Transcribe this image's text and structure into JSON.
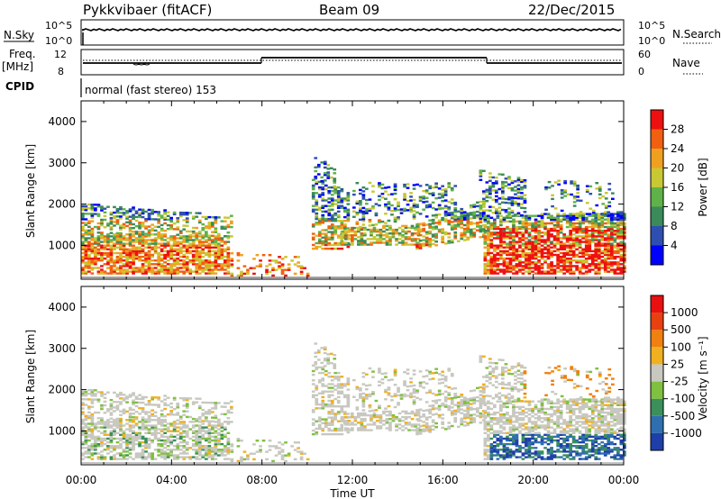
{
  "header": {
    "station": "Pykkvibaer (fitACF)",
    "beam": "Beam 09",
    "date": "22/Dec/2015"
  },
  "strip": {
    "nsky_label": "N.Sky",
    "nsky_ticks": [
      "10^5",
      "10^0"
    ],
    "nsearch_label": "N.Search",
    "nsearch_ticks": [
      "10^5",
      "10^0"
    ],
    "freq_label": "Freq.",
    "freq_unit": "[MHz]",
    "freq_ticks": [
      "12",
      "8"
    ],
    "nave_label": "Nave",
    "nave_ticks": [
      "60",
      "0"
    ],
    "cpid_label": "CPID",
    "cpid_text": "normal (fast stereo) 153"
  },
  "chart_data": [
    {
      "type": "heatmap",
      "name": "power",
      "ylabel": "Slant Range [km]",
      "xlabel": "",
      "xlim": [
        0,
        24
      ],
      "ylim": [
        180,
        4500
      ],
      "yticks": [
        1000,
        2000,
        3000,
        4000
      ],
      "colorbar_label": "Power [dB]",
      "colorbar_ticks": [
        "28",
        "24",
        "20",
        "16",
        "12",
        "8",
        "4"
      ],
      "colorbar_colors": [
        "#0000ff",
        "#2f4fb0",
        "#3b8a5a",
        "#5fb24a",
        "#c8c834",
        "#f0a020",
        "#f06010",
        "#ee1010"
      ],
      "colorbar_range": [
        0,
        32
      ]
    },
    {
      "type": "heatmap",
      "name": "velocity",
      "ylabel": "Slant Range [km]",
      "xlabel": "Time UT",
      "xlim": [
        0,
        24
      ],
      "ylim": [
        180,
        4500
      ],
      "yticks": [
        1000,
        2000,
        3000,
        4000
      ],
      "xticks": [
        "00:00",
        "04:00",
        "08:00",
        "12:00",
        "16:00",
        "20:00",
        "00:00"
      ],
      "colorbar_label": "Velocity [m s⁻¹]",
      "colorbar_ticks": [
        "1000",
        "500",
        "100",
        "25",
        "-25",
        "-100",
        "-500",
        "-1000"
      ],
      "colorbar_colors": [
        "#1f3fa8",
        "#2f6fb0",
        "#3b8f5a",
        "#7fc040",
        "#c8c8c0",
        "#f0b020",
        "#f08010",
        "#e84010",
        "#e81010"
      ]
    }
  ]
}
